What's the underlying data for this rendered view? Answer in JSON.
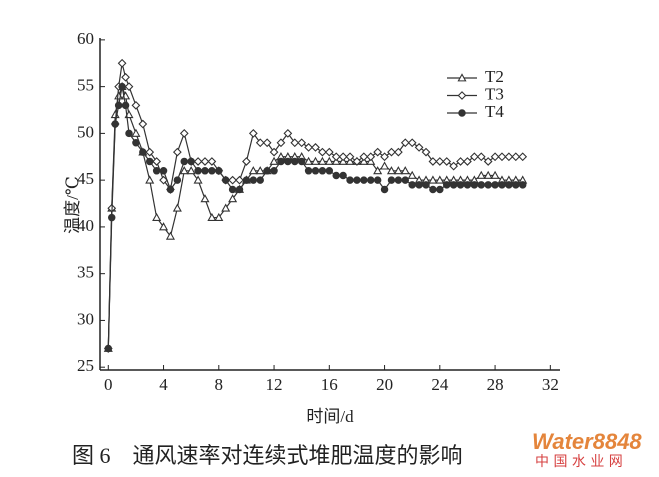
{
  "chart_data": {
    "type": "line",
    "x_label": "时间/d",
    "y_label": "温度/℃",
    "caption": "图 6　通风速率对连续式堆肥温度的影响",
    "watermark": [
      "Water8848",
      "中 国 水 业 网"
    ],
    "x": [
      0,
      0.25,
      0.5,
      0.75,
      1,
      1.25,
      1.5,
      2,
      2.5,
      3,
      3.5,
      4,
      4.5,
      5,
      5.5,
      6,
      6.5,
      7,
      7.5,
      8,
      8.5,
      9,
      9.5,
      10,
      10.5,
      11,
      11.5,
      12,
      12.5,
      13,
      13.5,
      14,
      14.5,
      15,
      15.5,
      16,
      16.5,
      17,
      17.5,
      18,
      18.5,
      19,
      19.5,
      20,
      20.5,
      21,
      21.5,
      22,
      22.5,
      23,
      23.5,
      24,
      24.5,
      25,
      25.5,
      26,
      26.5,
      27,
      27.5,
      28,
      28.5,
      29,
      29.5,
      30
    ],
    "series": [
      {
        "name": "T2",
        "marker": "triangle",
        "color": "#333333",
        "values": [
          27,
          42,
          52,
          54,
          55,
          54,
          52,
          50,
          48,
          45,
          41,
          40,
          39,
          42,
          46,
          46,
          45,
          43,
          41,
          41,
          42,
          43,
          44,
          45,
          46,
          46,
          46,
          47,
          47.5,
          47.5,
          47.5,
          47.5,
          47,
          47,
          47,
          47,
          47,
          47,
          47,
          47,
          47,
          47,
          46,
          46.5,
          46,
          46,
          46,
          45.5,
          45,
          45,
          45,
          45,
          45,
          45,
          45,
          45,
          45,
          45.5,
          45.5,
          45.5,
          45,
          45,
          45,
          45
        ]
      },
      {
        "name": "T3",
        "marker": "diamond",
        "color": "#333333",
        "values": [
          27,
          42,
          51,
          55,
          57.5,
          56,
          55,
          53,
          51,
          48,
          47,
          45,
          44,
          48,
          50,
          47,
          47,
          47,
          47,
          46,
          45,
          45,
          45,
          47,
          50,
          49,
          49,
          48,
          49,
          50,
          49,
          49,
          48.5,
          48.5,
          48,
          48,
          47.5,
          47.5,
          47.5,
          47,
          47.5,
          47.5,
          48,
          47.5,
          48,
          48,
          49,
          49,
          48.5,
          48,
          47,
          47,
          47,
          46.5,
          47,
          47,
          47.5,
          47.5,
          47,
          47.5,
          47.5,
          47.5,
          47.5,
          47.5
        ]
      },
      {
        "name": "T4",
        "marker": "circle",
        "color": "#333333",
        "values": [
          27,
          41,
          51,
          53,
          55,
          53,
          50,
          49,
          48,
          47,
          46,
          46,
          44,
          45,
          47,
          47,
          46,
          46,
          46,
          46,
          45,
          44,
          44,
          45,
          45,
          45,
          46,
          46,
          47,
          47,
          47,
          47,
          46,
          46,
          46,
          46,
          45.5,
          45.5,
          45,
          45,
          45,
          45,
          45,
          44,
          45,
          45,
          45,
          44.5,
          44.5,
          44.5,
          44,
          44,
          44.5,
          44.5,
          44.5,
          44.5,
          44.5,
          44.5,
          44.5,
          44.5,
          44.5,
          44.5,
          44.5,
          44.5
        ]
      }
    ],
    "xlim": [
      -0.6,
      32.7
    ],
    "ylim": [
      24.7,
      60.2
    ],
    "xticks": [
      0,
      4,
      8,
      12,
      16,
      20,
      24,
      28,
      32
    ],
    "yticks": [
      25,
      30,
      35,
      40,
      45,
      50,
      55,
      60
    ],
    "legend": "top-right"
  }
}
